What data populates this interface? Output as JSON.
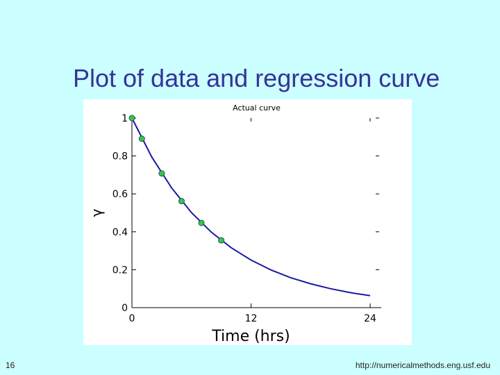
{
  "slide": {
    "title": "Plot of data and regression curve",
    "number": "16",
    "footer_url": "http://numericalmethods.eng.usf.edu"
  },
  "colors": {
    "background": "#ccffff",
    "title": "#333399",
    "curve": "#1a1aa0",
    "points_fill": "#33cc33",
    "points_stroke": "#2a4a7a"
  },
  "chart_data": {
    "type": "scatter",
    "title": "Actual curve",
    "xlabel": "Time (hrs)",
    "ylabel": "γ",
    "xlim": [
      0,
      24
    ],
    "ylim": [
      0,
      1
    ],
    "x_ticks": [
      0,
      12,
      24
    ],
    "x_tick_labels": [
      "0",
      "12",
      "24"
    ],
    "y_ticks": [
      0,
      0.2,
      0.4,
      0.6,
      0.8,
      1
    ],
    "y_tick_labels": [
      "0",
      "0.2",
      "0.4",
      "0.6",
      "0.8",
      "1"
    ],
    "grid": false,
    "series": [
      {
        "kind": "points",
        "x": [
          0,
          1,
          3,
          5,
          7,
          9
        ],
        "y": [
          1.0,
          0.891,
          0.708,
          0.562,
          0.447,
          0.355
        ]
      },
      {
        "kind": "line",
        "x": [
          0,
          2,
          4,
          6,
          8,
          10,
          12,
          14,
          16,
          18,
          20,
          22,
          24
        ],
        "y": [
          1.0,
          0.794,
          0.631,
          0.501,
          0.398,
          0.316,
          0.251,
          0.199,
          0.158,
          0.126,
          0.1,
          0.079,
          0.063
        ]
      }
    ]
  }
}
